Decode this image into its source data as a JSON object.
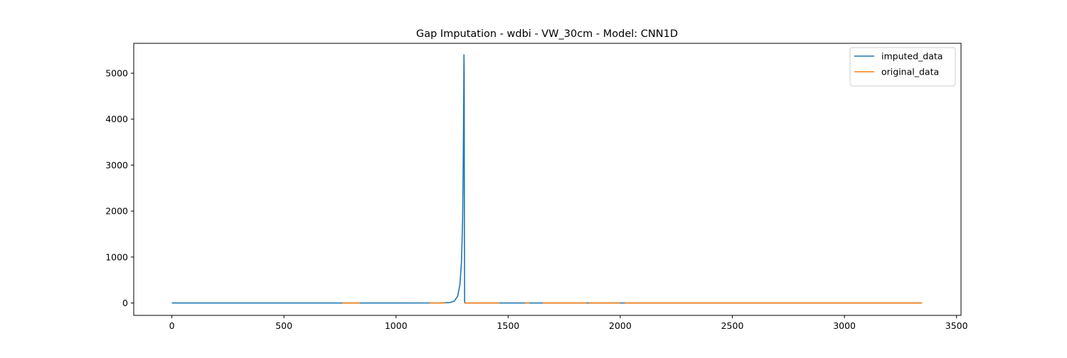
{
  "chart_data": {
    "type": "line",
    "title": "Gap Imputation - wdbi - VW_30cm - Model: CNN1D",
    "xlabel": "",
    "ylabel": "",
    "xlim": [
      -170,
      3520
    ],
    "ylim": [
      -270,
      5650
    ],
    "x_ticks": [
      0,
      500,
      1000,
      1500,
      2000,
      2500,
      3000,
      3500
    ],
    "y_ticks": [
      0,
      1000,
      2000,
      3000,
      4000,
      5000
    ],
    "grid": false,
    "legend_position": "top-right",
    "series": [
      {
        "name": "imputed_data",
        "color": "#1f77b4",
        "x": [
          0,
          500,
          1000,
          1200,
          1240,
          1260,
          1275,
          1285,
          1292,
          1297,
          1300,
          1302,
          1303,
          1304,
          1305,
          1306,
          1307,
          1400,
          1800,
          2500,
          3346
        ],
        "y": [
          0,
          0,
          0,
          2,
          10,
          40,
          150,
          400,
          900,
          1800,
          3200,
          4600,
          5400,
          5000,
          1500,
          20,
          0,
          0,
          0,
          0,
          0
        ]
      },
      {
        "name": "original_data",
        "color": "#ff7f0e",
        "segments": [
          {
            "x": [
              760,
              840
            ],
            "y": [
              0,
              0
            ]
          },
          {
            "x": [
              1150,
              1220
            ],
            "y": [
              0,
              0
            ]
          },
          {
            "x": [
              1307,
              1462
            ],
            "y": [
              0,
              0
            ]
          },
          {
            "x": [
              1575,
              1595
            ],
            "y": [
              0,
              0
            ]
          },
          {
            "x": [
              1655,
              1850
            ],
            "y": [
              0,
              0
            ]
          },
          {
            "x": [
              1860,
              2000
            ],
            "y": [
              0,
              0
            ]
          },
          {
            "x": [
              2020,
              3346
            ],
            "y": [
              0,
              0
            ]
          }
        ]
      }
    ]
  }
}
